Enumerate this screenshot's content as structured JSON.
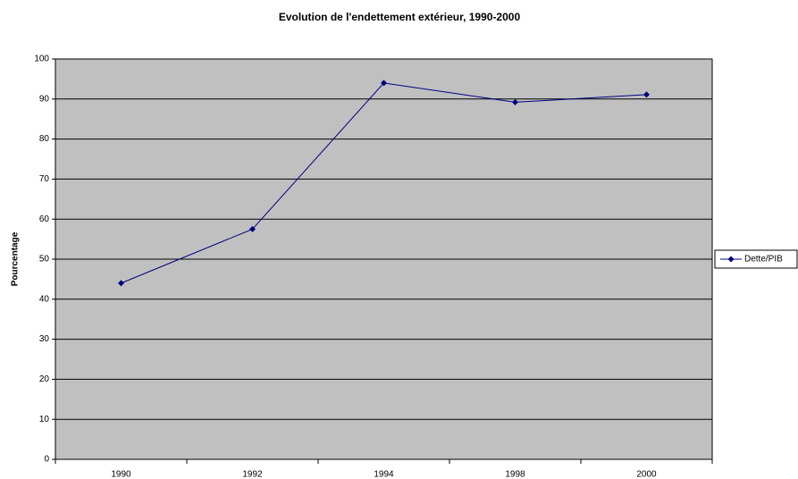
{
  "chart_data": {
    "type": "line",
    "title": "Evolution de l'endettement extérieur, 1990-2000",
    "y_label": "Pourcentage",
    "categories": [
      "1990",
      "1992",
      "1994",
      "1998",
      "2000"
    ],
    "series": [
      {
        "name": "Dette/PIB",
        "color": "#000080",
        "values": [
          44,
          57.5,
          94,
          89.2,
          91.1
        ]
      }
    ],
    "ylim": [
      0,
      100
    ],
    "yticks": [
      0,
      10,
      20,
      30,
      40,
      50,
      60,
      70,
      80,
      90,
      100
    ],
    "grid": true,
    "legend": "right"
  }
}
